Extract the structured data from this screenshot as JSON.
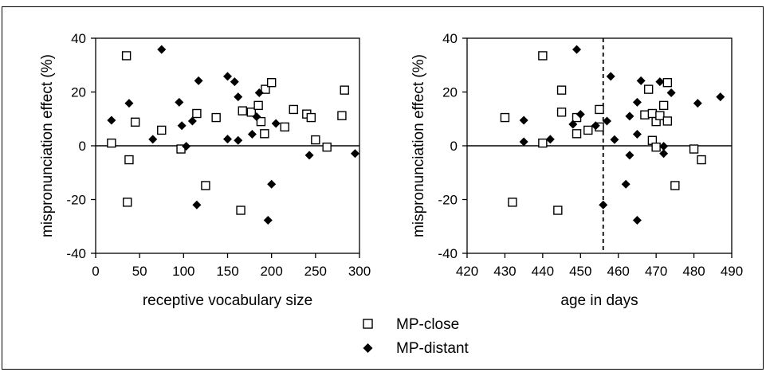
{
  "chart_data": [
    {
      "type": "scatter",
      "title": "",
      "xlabel": "receptive vocabulary size",
      "ylabel": "mispronunciation effect (%)",
      "xlim": [
        0,
        300
      ],
      "ylim": [
        -40,
        40
      ],
      "xticks": [
        0,
        50,
        100,
        150,
        200,
        250,
        300
      ],
      "yticks": [
        -40,
        -20,
        0,
        20,
        40
      ],
      "reference_lines": [
        {
          "axis": "y",
          "value": 0,
          "style": "solid"
        }
      ],
      "grid": false,
      "series": [
        {
          "name": "MP-close",
          "marker": "open-square",
          "points": [
            [
              35,
              33.5
            ],
            [
              45,
              8.8
            ],
            [
              18,
              1.0
            ],
            [
              38,
              -5.2
            ],
            [
              36,
              -21.0
            ],
            [
              75,
              5.8
            ],
            [
              97,
              -1.2
            ],
            [
              115,
              12.0
            ],
            [
              125,
              -14.8
            ],
            [
              137,
              10.5
            ],
            [
              165,
              -24.0
            ],
            [
              167,
              13.0
            ],
            [
              177,
              12.5
            ],
            [
              185,
              15.0
            ],
            [
              188,
              9.0
            ],
            [
              192,
              4.5
            ],
            [
              193,
              21.0
            ],
            [
              200,
              23.5
            ],
            [
              215,
              7.0
            ],
            [
              225,
              13.5
            ],
            [
              240,
              11.8
            ],
            [
              245,
              10.5
            ],
            [
              250,
              2.2
            ],
            [
              263,
              -0.5
            ],
            [
              280,
              11.2
            ],
            [
              283,
              20.7
            ]
          ]
        },
        {
          "name": "MP-distant",
          "marker": "filled-diamond",
          "points": [
            [
              18,
              9.5
            ],
            [
              38,
              15.8
            ],
            [
              65,
              2.4
            ],
            [
              75,
              35.8
            ],
            [
              95,
              16.2
            ],
            [
              98,
              7.5
            ],
            [
              103,
              -0.2
            ],
            [
              110,
              9.2
            ],
            [
              115,
              -22.0
            ],
            [
              117,
              24.2
            ],
            [
              150,
              2.5
            ],
            [
              150,
              25.8
            ],
            [
              158,
              23.8
            ],
            [
              162,
              2.0
            ],
            [
              162,
              18.2
            ],
            [
              178,
              4.3
            ],
            [
              183,
              10.8
            ],
            [
              186,
              19.7
            ],
            [
              196,
              -27.7
            ],
            [
              200,
              -14.3
            ],
            [
              205,
              8.3
            ],
            [
              243,
              -3.5
            ],
            [
              295,
              -2.9
            ]
          ]
        }
      ]
    },
    {
      "type": "scatter",
      "title": "",
      "xlabel": "age in days",
      "ylabel": "mispronunciation effect (%)",
      "xlim": [
        420,
        490
      ],
      "ylim": [
        -40,
        40
      ],
      "xticks": [
        420,
        430,
        440,
        450,
        460,
        470,
        480,
        490
      ],
      "yticks": [
        -40,
        -20,
        0,
        20,
        40
      ],
      "reference_lines": [
        {
          "axis": "y",
          "value": 0,
          "style": "solid"
        },
        {
          "axis": "x",
          "value": 456,
          "style": "dashed"
        }
      ],
      "grid": false,
      "series": [
        {
          "name": "MP-close",
          "marker": "open-square",
          "points": [
            [
              430,
              10.5
            ],
            [
              432,
              -21.0
            ],
            [
              440,
              33.5
            ],
            [
              440,
              1.0
            ],
            [
              444,
              -24.0
            ],
            [
              445,
              20.7
            ],
            [
              445,
              12.5
            ],
            [
              449,
              4.5
            ],
            [
              449,
              10.5
            ],
            [
              452,
              5.8
            ],
            [
              455,
              7.0
            ],
            [
              455,
              13.5
            ],
            [
              467,
              11.5
            ],
            [
              468,
              21.0
            ],
            [
              469,
              2.0
            ],
            [
              469,
              12.0
            ],
            [
              470,
              -0.5
            ],
            [
              470,
              9.0
            ],
            [
              471,
              11.2
            ],
            [
              472,
              15.0
            ],
            [
              473,
              23.5
            ],
            [
              473,
              9.2
            ],
            [
              475,
              -14.8
            ],
            [
              480,
              -1.2
            ],
            [
              482,
              -5.2
            ]
          ]
        },
        {
          "name": "MP-distant",
          "marker": "filled-diamond",
          "points": [
            [
              435,
              9.5
            ],
            [
              435,
              1.5
            ],
            [
              442,
              2.4
            ],
            [
              448,
              8.0
            ],
            [
              449,
              35.8
            ],
            [
              450,
              11.7
            ],
            [
              454,
              7.5
            ],
            [
              456,
              -22.0
            ],
            [
              457,
              9.2
            ],
            [
              458,
              25.8
            ],
            [
              459,
              2.3
            ],
            [
              462,
              -14.3
            ],
            [
              463,
              -3.5
            ],
            [
              463,
              11.0
            ],
            [
              465,
              4.3
            ],
            [
              465,
              16.2
            ],
            [
              465,
              -27.7
            ],
            [
              466,
              24.2
            ],
            [
              471,
              23.8
            ],
            [
              472,
              -0.2
            ],
            [
              472,
              -2.9
            ],
            [
              474,
              19.7
            ],
            [
              481,
              15.8
            ],
            [
              487,
              18.2
            ]
          ]
        }
      ]
    }
  ],
  "legend": {
    "position": "bottom-center",
    "items": [
      {
        "label": "MP-close",
        "marker": "open-square"
      },
      {
        "label": "MP-distant",
        "marker": "filled-diamond"
      }
    ]
  }
}
